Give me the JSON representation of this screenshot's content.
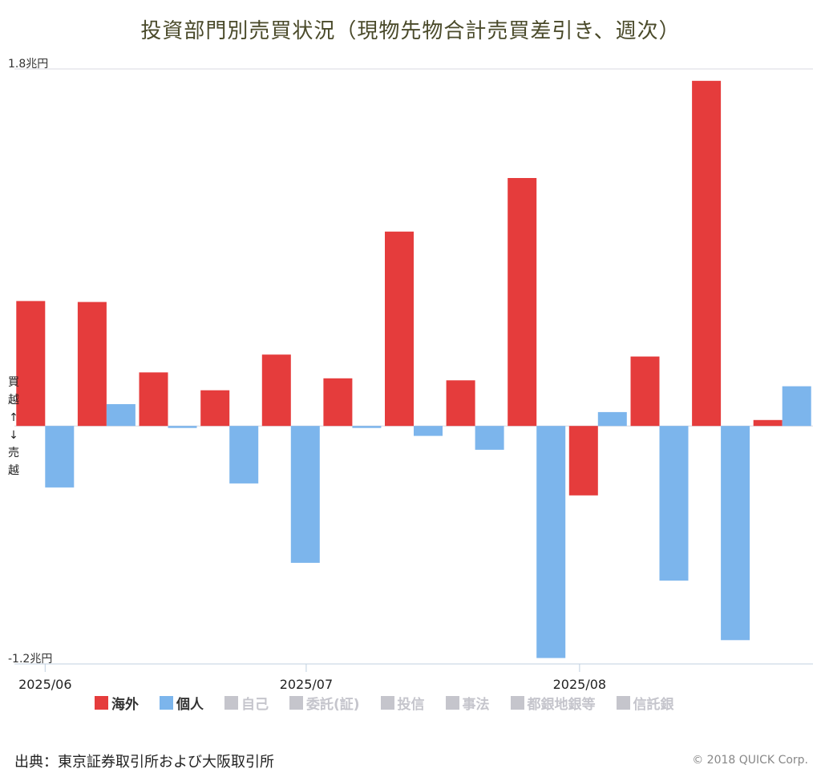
{
  "chart_data": {
    "type": "bar",
    "title": "投資部門別売買状況（現物先物合計売買差引き、週次）",
    "ylabel": "買越↑↓売越",
    "ylim": [
      -1.2,
      1.8
    ],
    "ytick_labels": [
      "1.8兆円",
      "-1.2兆円"
    ],
    "yunit": "兆円",
    "x_tick_labels": [
      "2025/06",
      "2025/07",
      "2025/08"
    ],
    "x_tick_positions": [
      0.5,
      4.75,
      9.2
    ],
    "n_weeks": 13,
    "series": [
      {
        "name": "海外",
        "color": "#e53c3c",
        "values": [
          0.63,
          0.625,
          0.27,
          0.18,
          0.36,
          0.24,
          0.98,
          0.23,
          1.25,
          -0.35,
          0.35,
          1.74,
          0.03
        ]
      },
      {
        "name": "個人",
        "color": "#7cb5ec",
        "values": [
          -0.31,
          0.11,
          -0.01,
          -0.29,
          -0.69,
          -0.01,
          -0.05,
          -0.12,
          -1.17,
          0.07,
          -0.78,
          -1.08,
          0.2
        ]
      }
    ],
    "legend": [
      {
        "name": "海外",
        "color": "#e53c3c",
        "active": true
      },
      {
        "name": "個人",
        "color": "#7cb5ec",
        "active": true
      },
      {
        "name": "自己",
        "color": "#c5c5cc",
        "active": false
      },
      {
        "name": "委託(証)",
        "color": "#c5c5cc",
        "active": false
      },
      {
        "name": "投信",
        "color": "#c5c5cc",
        "active": false
      },
      {
        "name": "事法",
        "color": "#c5c5cc",
        "active": false
      },
      {
        "name": "都銀地銀等",
        "color": "#c5c5cc",
        "active": false
      },
      {
        "name": "信託銀",
        "color": "#c5c5cc",
        "active": false
      }
    ],
    "legend_position": "bottom",
    "grid": false
  },
  "source": "出典：東京証券取引所および大阪取引所",
  "credit": "© 2018 QUICK Corp."
}
